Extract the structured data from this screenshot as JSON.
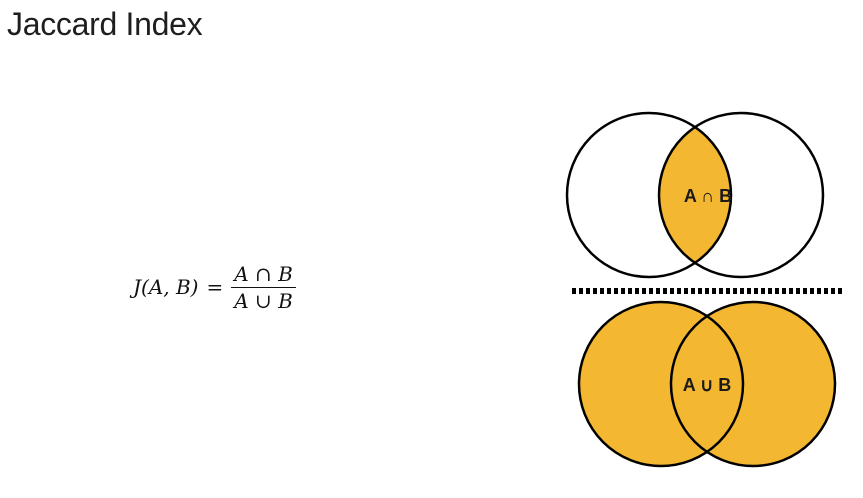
{
  "page": {
    "title": "Jaccard Index"
  },
  "formula": {
    "lhs": "J(A, B)",
    "equals": "=",
    "numerator": "A ∩ B",
    "denominator": "A ∪ B"
  },
  "venn": {
    "intersection_label": "A ∩ B",
    "union_label": "A ∪ B",
    "fill_color": "#f3b731",
    "stroke_color": "#000000",
    "divider_style": "dotted"
  }
}
